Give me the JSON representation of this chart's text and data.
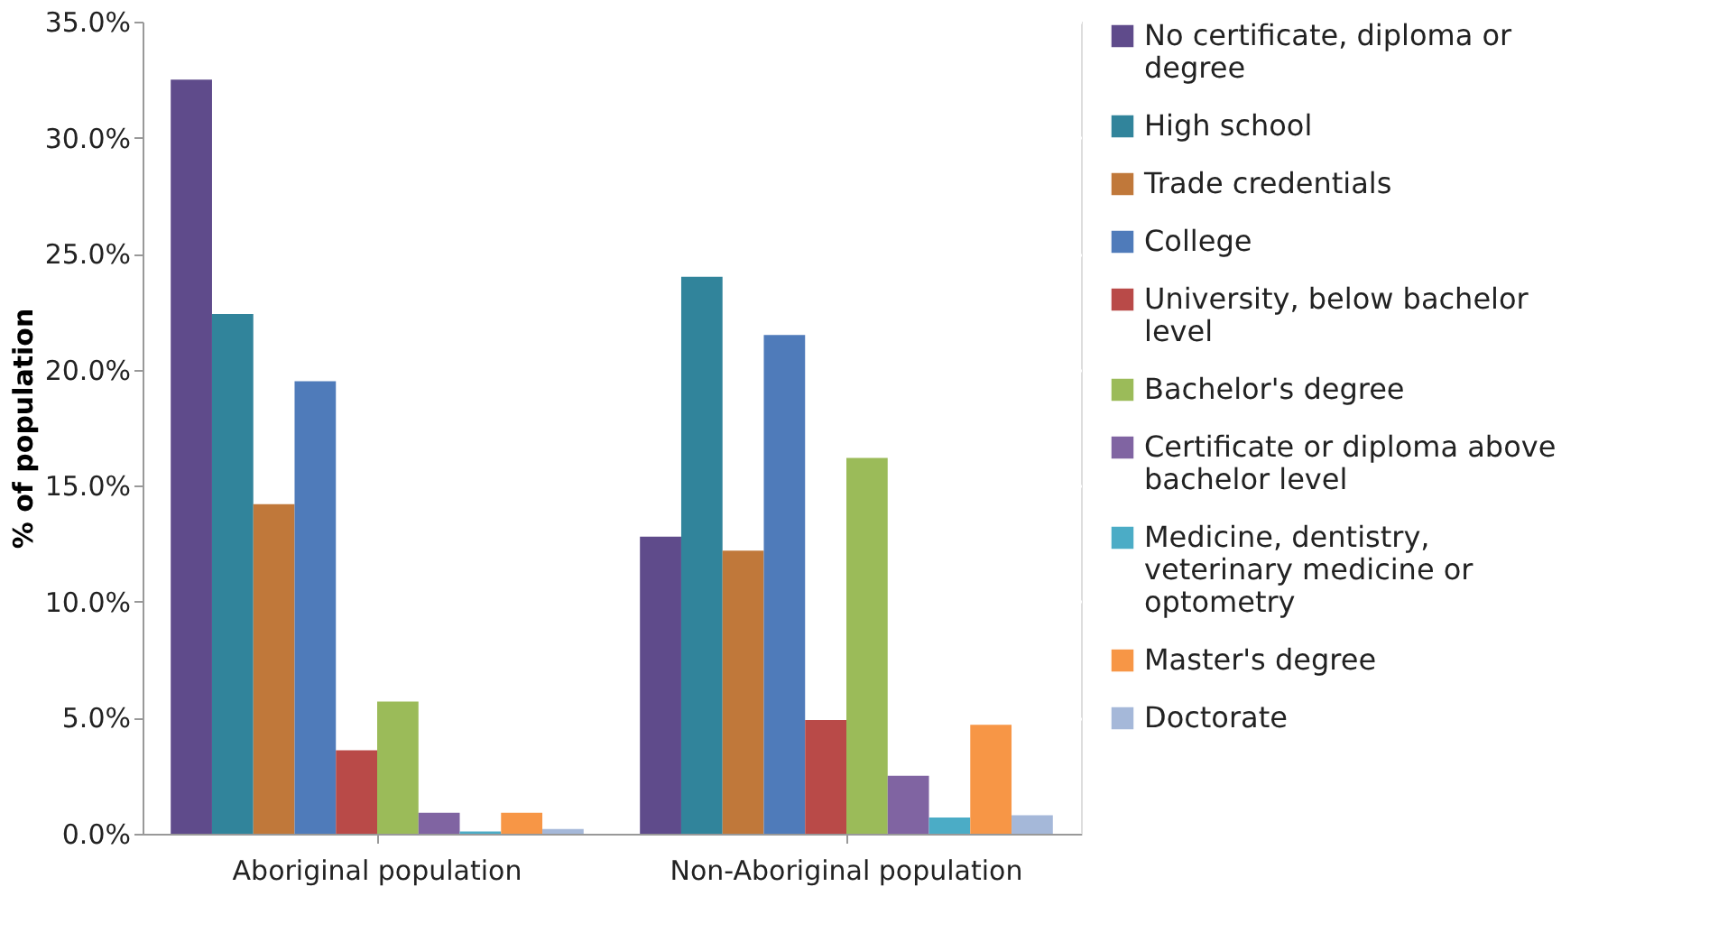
{
  "chart_data": {
    "type": "bar",
    "ylabel": "% of population",
    "categories": [
      "Aboriginal population",
      "Non-Aboriginal population"
    ],
    "series": [
      {
        "name": "No certificate, diploma or degree",
        "color": "#5f4b8b",
        "values": [
          32.5,
          12.8
        ]
      },
      {
        "name": "High school",
        "color": "#31849b",
        "values": [
          22.4,
          24.0
        ]
      },
      {
        "name": "Trade credentials",
        "color": "#c0783a",
        "values": [
          14.2,
          12.2
        ]
      },
      {
        "name": "College",
        "color": "#4f7bba",
        "values": [
          19.5,
          21.5
        ]
      },
      {
        "name": "University, below bachelor level",
        "color": "#b94a48",
        "values": [
          3.6,
          4.9
        ]
      },
      {
        "name": "Bachelor's degree",
        "color": "#9bbb59",
        "values": [
          5.7,
          16.2
        ]
      },
      {
        "name": "Certificate or diploma above bachelor level",
        "color": "#8064a2",
        "values": [
          0.9,
          2.5
        ]
      },
      {
        "name": "Medicine, dentistry, veterinary medicine or optometry",
        "color": "#4bacc6",
        "values": [
          0.1,
          0.7
        ]
      },
      {
        "name": "Master's degree",
        "color": "#f79646",
        "values": [
          0.9,
          4.7
        ]
      },
      {
        "name": "Doctorate",
        "color": "#a5b8d9",
        "values": [
          0.2,
          0.8
        ]
      }
    ],
    "ylim": [
      0,
      35
    ],
    "yticks": [
      {
        "value": 0,
        "label": "0.0%"
      },
      {
        "value": 5,
        "label": "5.0%"
      },
      {
        "value": 10,
        "label": "10.0%"
      },
      {
        "value": 15,
        "label": "15.0%"
      },
      {
        "value": 20,
        "label": "20.0%"
      },
      {
        "value": 25,
        "label": "25.0%"
      },
      {
        "value": 30,
        "label": "30.0%"
      },
      {
        "value": 35,
        "label": "35.0%"
      }
    ],
    "grid": "y",
    "legend": "right"
  }
}
